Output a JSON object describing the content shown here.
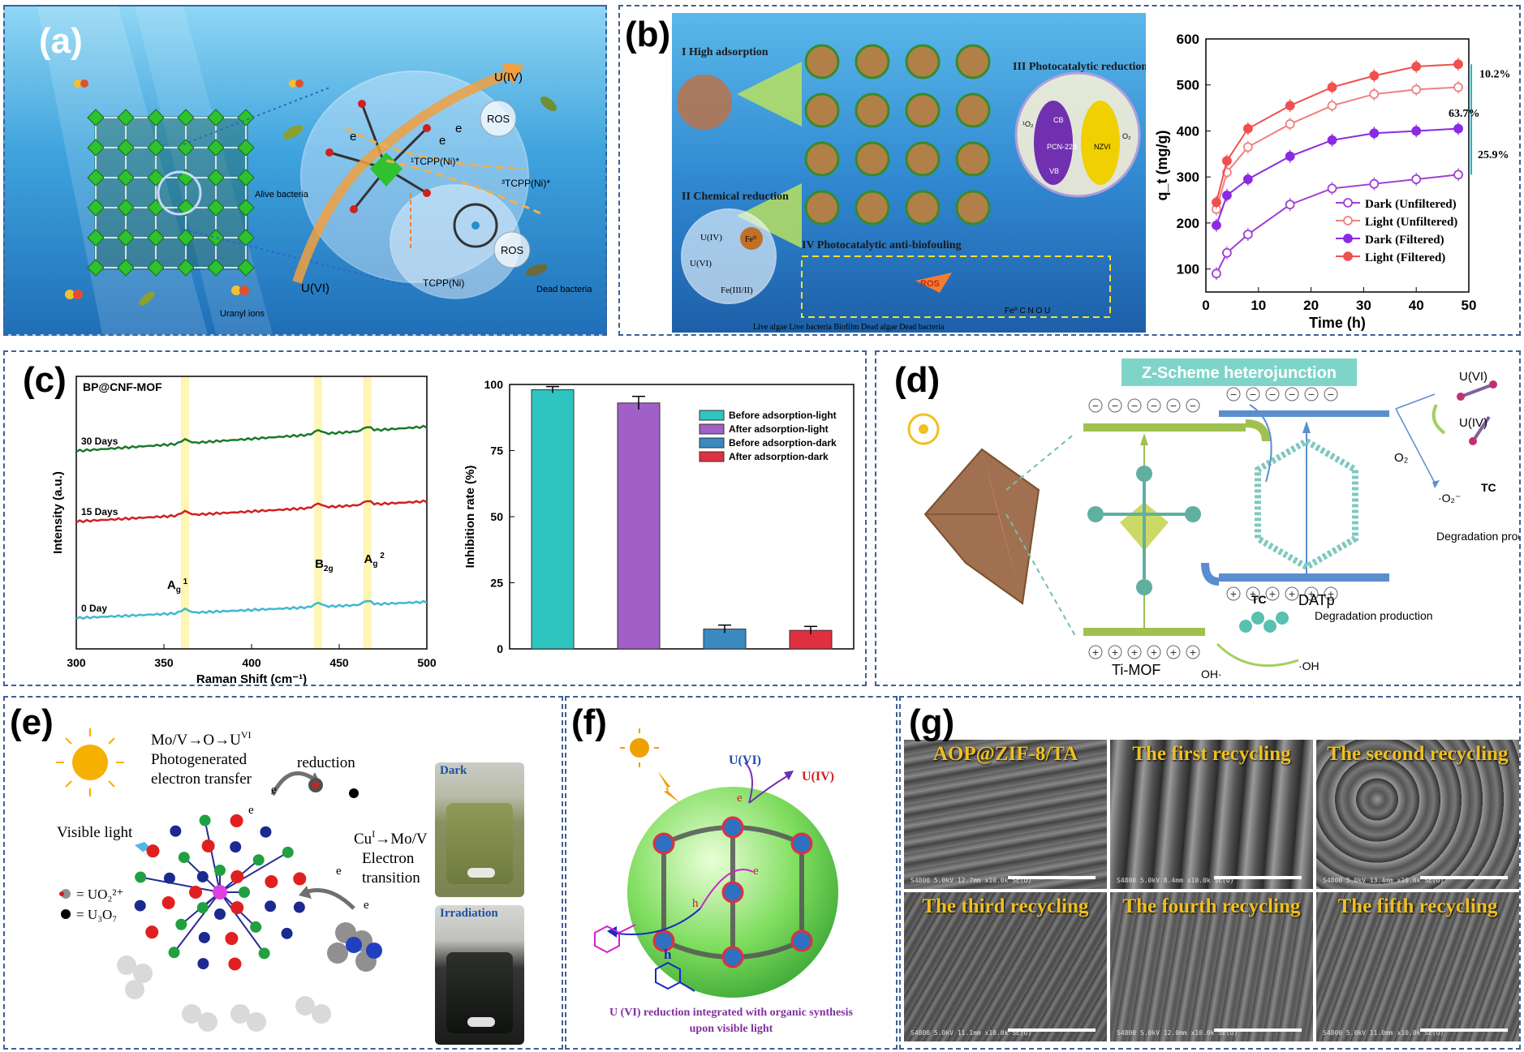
{
  "panels": {
    "a": {
      "label": "(a)",
      "texts": {
        "u4": "U(IV)",
        "u6": "U(VI)",
        "ros1": "ROS",
        "ros2": "ROS",
        "e1": "e",
        "e2": "e",
        "e3": "e",
        "tcpp_ni_1": "¹TCPP(Ni)*",
        "tcpp_ni_3": "³TCPP(Ni)*",
        "tcpp_ni": "TCPP(Ni)",
        "alive": "Alive bacteria",
        "dead": "Dead bacteria",
        "uranyl": "Uranyl ions"
      }
    },
    "b": {
      "label": "(b)",
      "texts": {
        "s1": "I High adsorption",
        "s2": "II Chemical reduction",
        "s3": "III Photocatalytic reduction",
        "s4": "IV Photocatalytic anti-biofouling",
        "u4": "U(IV)",
        "u6": "U(VI)",
        "fe0": "Fe⁰",
        "fe23": "Fe(III/II)",
        "ros": "ROS",
        "cb": "CB",
        "vb": "VB",
        "pcn": "PCN-224",
        "nzvi": "NZVI",
        "o2_1": "¹O₂",
        "o2_2": "O₂",
        "legend_atoms": "Fe⁰  C  N  O  U",
        "legend_bottom": "Live algae   Live bacteria   Biofilm   Dead algae   Dead bacteria"
      }
    },
    "c": {
      "label": "(c)"
    },
    "d": {
      "label": "(d)",
      "texts": {
        "title": "Z-Scheme heterojunction",
        "u6": "U(VI)",
        "u4": "U(IV)",
        "o2": "O₂",
        "o2r": "·O₂⁻",
        "tc1": "TC",
        "tc2": "TC",
        "deg1": "Degradation production",
        "deg2": "Degradation production",
        "datp": "DATp",
        "timof": "Ti-MOF",
        "oh1": "OH·",
        "oh2": "·OH"
      }
    },
    "e": {
      "label": "(e)",
      "texts": {
        "t1": "Mo/V→O→U",
        "t1sup": "VI",
        "t2": "Photogenerated",
        "t3": "electron transfer",
        "t4": "reduction",
        "t5": "Visible light",
        "t6": "Cu",
        "t6sup": "I",
        "t6b": "→Mo/V",
        "t7": "Electron",
        "t8": "transition",
        "e1": "e",
        "e2": "e",
        "e3": "e",
        "e4": "e",
        "leg1": "= UO₂²⁺",
        "leg2": "= U₃O₇",
        "dark": "Dark",
        "irr": "Irradiation"
      }
    },
    "f": {
      "label": "(f)",
      "texts": {
        "u6": "U(VI)",
        "u4": "U(IV)",
        "e1": "e",
        "e2": "e",
        "h1": "h",
        "h2": "h",
        "caption1": "U (VI) reduction integrated with organic synthesis",
        "caption2": "upon visible light"
      }
    },
    "g": {
      "label": "(g)",
      "cells": [
        {
          "title": "AOP@ZIF-8/TA",
          "info": "S4800 5.0kV 12.7mm x10.0k SE(U)"
        },
        {
          "title": "The first recycling",
          "info": "S4800 5.0kV 8.4mm x10.0k SE(U)"
        },
        {
          "title": "The second recycling",
          "info": "S4800 5.0kV 13.4mm x10.0k SE(U)"
        },
        {
          "title": "The third recycling",
          "info": "S4800 5.0kV 11.1mm x10.0k SE(U)"
        },
        {
          "title": "The fourth recycling",
          "info": "S4800 5.0kV 12.0mm x10.0k SE(U)"
        },
        {
          "title": "The fifth recycling",
          "info": "S4800 5.0kV 11.0mm x10.0k SE(U)"
        }
      ]
    }
  },
  "chart_data": [
    {
      "type": "line",
      "xlabel": "Time (h)",
      "ylabel": "q_t (mg/g)",
      "xlim": [
        0,
        50
      ],
      "ylim": [
        50,
        600
      ],
      "xticks": [
        0,
        10,
        20,
        30,
        40,
        50
      ],
      "yticks": [
        100,
        200,
        300,
        400,
        500,
        600
      ],
      "legend_position": "bottom-right",
      "x": [
        2,
        4,
        8,
        16,
        24,
        32,
        40,
        48
      ],
      "series": [
        {
          "name": "Dark (Unfiltered)",
          "color": "#a040d0",
          "marker": "open",
          "values": [
            90,
            135,
            175,
            240,
            275,
            285,
            295,
            305
          ]
        },
        {
          "name": "Light (Unfiltered)",
          "color": "#f08080",
          "marker": "open",
          "values": [
            230,
            310,
            365,
            415,
            455,
            480,
            490,
            495
          ]
        },
        {
          "name": "Dark (Filtered)",
          "color": "#8a2be2",
          "marker": "filled",
          "values": [
            195,
            260,
            295,
            345,
            380,
            395,
            400,
            405
          ]
        },
        {
          "name": "Light (Filtered)",
          "color": "#f05050",
          "marker": "filled",
          "values": [
            245,
            335,
            405,
            455,
            495,
            520,
            540,
            545
          ]
        }
      ],
      "annotations": [
        "10.2%",
        "63.7%",
        "25.9%"
      ]
    },
    {
      "type": "line",
      "title": "BP@CNF-MOF",
      "xlabel": "Raman Shift (cm⁻¹)",
      "ylabel": "Intensity (a.u.)",
      "xlim": [
        300,
        500
      ],
      "xticks": [
        300,
        350,
        400,
        450,
        500
      ],
      "highlight_x": [
        362,
        438,
        466
      ],
      "series": [
        {
          "name": "30 Days",
          "color": "#1a7a2a"
        },
        {
          "name": "15 Days",
          "color": "#d02020"
        },
        {
          "name": "0 Day",
          "color": "#40b8d0"
        }
      ],
      "peak_labels": [
        {
          "x": 362,
          "label": "A",
          "sub": "g",
          "sup": "1"
        },
        {
          "x": 438,
          "label": "B",
          "sub": "2g",
          "sup": ""
        },
        {
          "x": 466,
          "label": "A",
          "sub": "g",
          "sup": "2"
        }
      ]
    },
    {
      "type": "bar",
      "ylabel": "Inhibition rate (%)",
      "ylim": [
        0,
        100
      ],
      "yticks": [
        0,
        25,
        50,
        75,
        100
      ],
      "categories": [
        "Before adsorption-light",
        "After adsorption-light",
        "Before adsorption-dark",
        "After adsorption-dark"
      ],
      "values": [
        98,
        93,
        7.5,
        7
      ],
      "errors": [
        1.2,
        2.5,
        1.5,
        1.5
      ],
      "colors": [
        "#2ec4c0",
        "#a060c8",
        "#3a8ac0",
        "#e03040"
      ],
      "legend_position": "top-right"
    }
  ]
}
